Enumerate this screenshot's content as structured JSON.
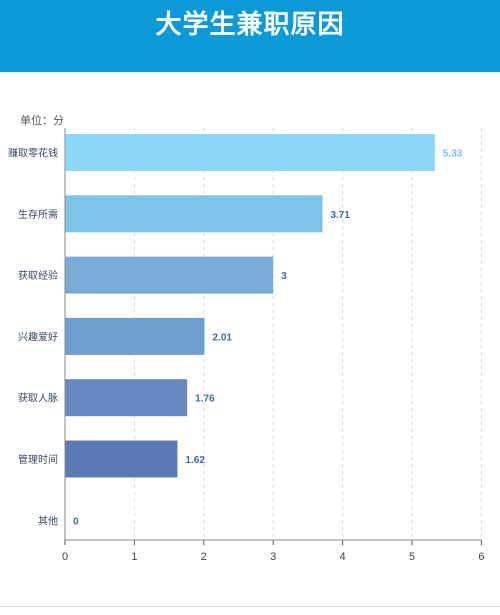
{
  "header": {
    "title": "大学生兼职原因"
  },
  "chart_data": {
    "type": "bar",
    "orientation": "horizontal",
    "unit_label": "单位：分",
    "categories": [
      "赚取零花钱",
      "生存所需",
      "获取经验",
      "兴趣爱好",
      "获取人脉",
      "管理时间",
      "其他"
    ],
    "values": [
      5.33,
      3.71,
      3,
      2.01,
      1.76,
      1.62,
      0
    ],
    "value_labels": [
      "5.33",
      "3.71",
      "3",
      "2.01",
      "1.76",
      "1.62",
      "0"
    ],
    "colors": [
      "#8ad8f6",
      "#7ec4e9",
      "#78acd6",
      "#6f9fd0",
      "#6688c3",
      "#5b79b7",
      "#5b79b7"
    ],
    "xlim": [
      0,
      6
    ],
    "xticks": [
      0,
      1,
      2,
      3,
      4,
      5,
      6
    ],
    "grid": true
  }
}
